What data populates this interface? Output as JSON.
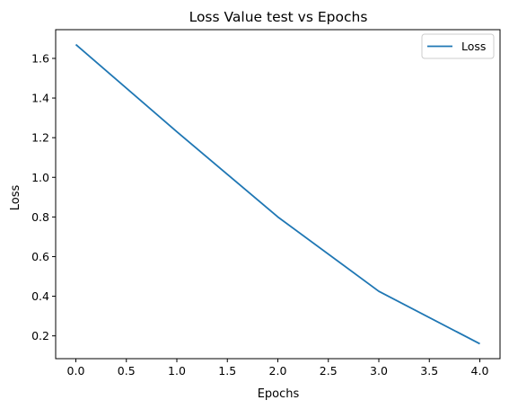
{
  "chart_data": {
    "type": "line",
    "title": "Loss Value test vs Epochs",
    "xlabel": "Epochs",
    "ylabel": "Loss",
    "x": [
      0,
      1,
      2,
      3,
      4
    ],
    "series": [
      {
        "name": "Loss",
        "values": [
          1.67,
          1.23,
          0.8,
          0.425,
          0.16
        ],
        "color": "#1f77b4"
      }
    ],
    "xlim": [
      -0.2,
      4.2
    ],
    "ylim": [
      0.085,
      1.745
    ],
    "xticks": [
      0.0,
      0.5,
      1.0,
      1.5,
      2.0,
      2.5,
      3.0,
      3.5,
      4.0
    ],
    "xtick_labels": [
      "0.0",
      "0.5",
      "1.0",
      "1.5",
      "2.0",
      "2.5",
      "3.0",
      "3.5",
      "4.0"
    ],
    "yticks": [
      0.2,
      0.4,
      0.6,
      0.8,
      1.0,
      1.2,
      1.4,
      1.6
    ],
    "ytick_labels": [
      "0.2",
      "0.4",
      "0.6",
      "0.8",
      "1.0",
      "1.2",
      "1.4",
      "1.6"
    ],
    "grid": false,
    "legend_position": "top-right"
  }
}
